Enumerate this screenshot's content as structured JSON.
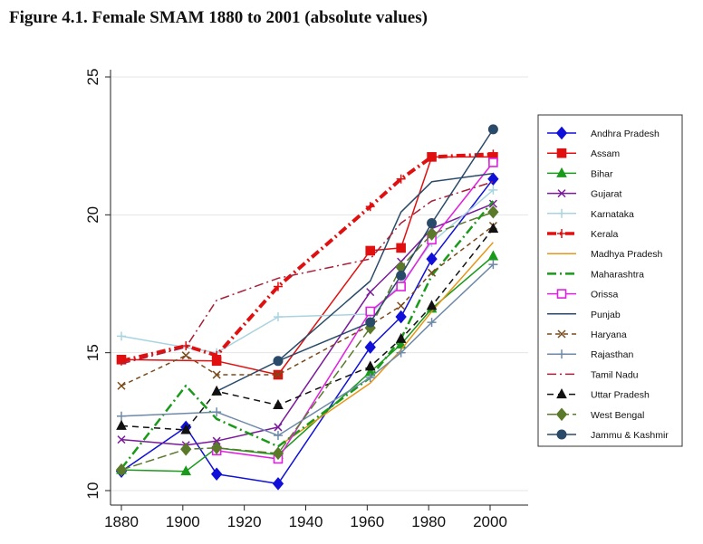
{
  "page": {
    "title": "Figure 4.1. Female SMAM 1880 to 2001 (absolute values)"
  },
  "chart_data": {
    "type": "line",
    "title": "Figure 4.1. Female SMAM 1880 to 2001 (absolute values)",
    "xlabel": "",
    "ylabel": "",
    "xlim": [
      1880,
      2000
    ],
    "ylim": [
      10,
      25
    ],
    "xticks": [
      1880,
      1900,
      1920,
      1940,
      1960,
      1980,
      2000
    ],
    "yticks": [
      10,
      15,
      20,
      25
    ],
    "grid": "horizontal",
    "legend_position": "right",
    "series": [
      {
        "name": "Andhra Pradesh",
        "color": "#1010d8",
        "dash": "",
        "marker": "diamond",
        "width": 1.5,
        "points": [
          [
            1880,
            10.7
          ],
          [
            1901,
            12.3
          ],
          [
            1911,
            10.6
          ],
          [
            1931,
            10.25
          ],
          [
            1961,
            15.2
          ],
          [
            1971,
            16.3
          ],
          [
            1981,
            18.4
          ],
          [
            2001,
            21.3
          ]
        ]
      },
      {
        "name": "Assam",
        "color": "#e01010",
        "dash": "",
        "marker": "square",
        "width": 1.5,
        "points": [
          [
            1880,
            14.75
          ],
          [
            1911,
            14.7
          ],
          [
            1931,
            14.2
          ],
          [
            1961,
            18.7
          ],
          [
            1971,
            18.8
          ],
          [
            1981,
            22.1
          ],
          [
            2001,
            22.1
          ]
        ]
      },
      {
        "name": "Bihar",
        "color": "#1a9a1a",
        "dash": "",
        "marker": "triangle",
        "width": 1.5,
        "points": [
          [
            1880,
            10.75
          ],
          [
            1901,
            10.7
          ],
          [
            1911,
            11.55
          ],
          [
            1931,
            11.3
          ],
          [
            1961,
            14.3
          ],
          [
            1971,
            15.3
          ],
          [
            1981,
            16.6
          ],
          [
            2001,
            18.5
          ]
        ]
      },
      {
        "name": "Gujarat",
        "color": "#7a1a9a",
        "dash": "",
        "marker": "x",
        "width": 1.5,
        "points": [
          [
            1880,
            11.85
          ],
          [
            1901,
            11.65
          ],
          [
            1911,
            11.8
          ],
          [
            1931,
            12.3
          ],
          [
            1961,
            17.2
          ],
          [
            1971,
            18.3
          ],
          [
            1981,
            19.5
          ],
          [
            2001,
            20.4
          ]
        ]
      },
      {
        "name": "Karnataka",
        "color": "#a8d4e0",
        "dash": "",
        "marker": "plus",
        "width": 1.5,
        "points": [
          [
            1880,
            15.6
          ],
          [
            1911,
            15.0
          ],
          [
            1931,
            16.3
          ],
          [
            1961,
            16.4
          ],
          [
            1971,
            17.5
          ],
          [
            1981,
            19.0
          ],
          [
            2001,
            20.9
          ]
        ]
      },
      {
        "name": "Kerala",
        "color": "#e01010",
        "dash": "10,4,2,4",
        "marker": "plus",
        "width": 4,
        "points": [
          [
            1880,
            14.7
          ],
          [
            1901,
            15.25
          ],
          [
            1911,
            14.9
          ],
          [
            1931,
            17.4
          ],
          [
            1961,
            20.3
          ],
          [
            1971,
            21.3
          ],
          [
            1981,
            22.1
          ],
          [
            2001,
            22.2
          ]
        ]
      },
      {
        "name": "Madhya Pradesh",
        "color": "#e8961a",
        "dash": "",
        "marker": "none",
        "width": 1.5,
        "points": [
          [
            1931,
            11.6
          ],
          [
            1961,
            13.9
          ],
          [
            1971,
            15.1
          ],
          [
            1981,
            16.5
          ],
          [
            2001,
            19.0
          ]
        ]
      },
      {
        "name": "Maharashtra",
        "color": "#1a9a1a",
        "dash": "10,4,2,4",
        "marker": "none",
        "width": 2.5,
        "points": [
          [
            1880,
            10.8
          ],
          [
            1901,
            13.8
          ],
          [
            1911,
            12.6
          ],
          [
            1931,
            11.6
          ],
          [
            1961,
            14.1
          ],
          [
            1971,
            15.5
          ],
          [
            1981,
            17.8
          ],
          [
            2001,
            20.5
          ]
        ]
      },
      {
        "name": "Orissa",
        "color": "#e020e0",
        "dash": "",
        "marker": "square",
        "width": 1.5,
        "points": [
          [
            1911,
            11.45
          ],
          [
            1931,
            11.15
          ],
          [
            1961,
            16.5
          ],
          [
            1971,
            17.4
          ],
          [
            1981,
            19.1
          ],
          [
            2001,
            21.9
          ]
        ]
      },
      {
        "name": "Punjab",
        "color": "#2a4a6a",
        "dash": "",
        "marker": "none",
        "width": 1.5,
        "points": [
          [
            1911,
            13.6
          ],
          [
            1931,
            14.7
          ],
          [
            1961,
            17.6
          ],
          [
            1971,
            20.1
          ],
          [
            1981,
            21.2
          ],
          [
            2001,
            21.5
          ]
        ]
      },
      {
        "name": "Haryana",
        "color": "#7a4a1a",
        "dash": "5,4",
        "marker": "x",
        "width": 1.5,
        "points": [
          [
            1880,
            13.8
          ],
          [
            1901,
            14.9
          ],
          [
            1911,
            14.2
          ],
          [
            1931,
            14.2
          ],
          [
            1961,
            16.0
          ],
          [
            1971,
            16.7
          ],
          [
            1981,
            17.9
          ],
          [
            2001,
            19.6
          ]
        ]
      },
      {
        "name": "Rajasthan",
        "color": "#6e8aa8",
        "dash": "",
        "marker": "plus",
        "width": 1.5,
        "points": [
          [
            1880,
            12.7
          ],
          [
            1911,
            12.85
          ],
          [
            1931,
            12.0
          ],
          [
            1961,
            14.1
          ],
          [
            1971,
            15.0
          ],
          [
            1981,
            16.1
          ],
          [
            2001,
            18.2
          ]
        ]
      },
      {
        "name": "Tamil Nadu",
        "color": "#a8203a",
        "dash": "10,4,2,4",
        "marker": "none",
        "width": 1.5,
        "points": [
          [
            1880,
            14.6
          ],
          [
            1901,
            15.2
          ],
          [
            1911,
            16.9
          ],
          [
            1931,
            17.7
          ],
          [
            1961,
            18.4
          ],
          [
            1971,
            19.7
          ],
          [
            1981,
            20.5
          ],
          [
            2001,
            21.2
          ]
        ]
      },
      {
        "name": "Uttar Pradesh",
        "color": "#111111",
        "dash": "7,5",
        "marker": "triangle",
        "width": 1.5,
        "points": [
          [
            1880,
            12.35
          ],
          [
            1901,
            12.2
          ],
          [
            1911,
            13.6
          ],
          [
            1931,
            13.1
          ],
          [
            1961,
            14.5
          ],
          [
            1971,
            15.5
          ],
          [
            1981,
            16.7
          ],
          [
            2001,
            19.5
          ]
        ]
      },
      {
        "name": "West Bengal",
        "color": "#5a7a2a",
        "dash": "10,4",
        "marker": "diamond",
        "width": 1.5,
        "points": [
          [
            1880,
            10.75
          ],
          [
            1901,
            11.5
          ],
          [
            1911,
            11.55
          ],
          [
            1931,
            11.35
          ],
          [
            1961,
            15.9
          ],
          [
            1971,
            18.1
          ],
          [
            1981,
            19.3
          ],
          [
            2001,
            20.1
          ]
        ]
      },
      {
        "name": "Jammu & Kashmir",
        "color": "#2a4a6a",
        "dash": "",
        "marker": "circle",
        "width": 1.5,
        "points": [
          [
            1931,
            14.7
          ],
          [
            1961,
            16.1
          ],
          [
            1971,
            17.8
          ],
          [
            1981,
            19.7
          ],
          [
            2001,
            23.1
          ]
        ]
      }
    ]
  }
}
